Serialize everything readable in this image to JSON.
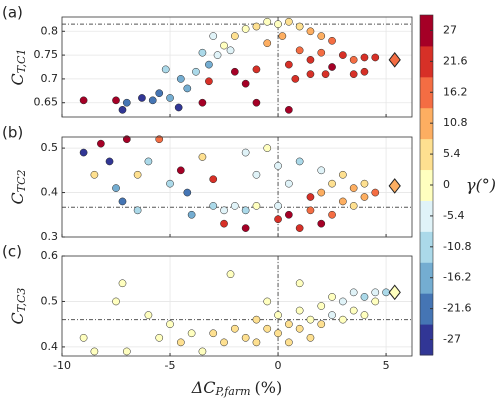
{
  "chart_data": [
    {
      "type": "scatter",
      "panel": "(a)",
      "ylabel": {
        "main": "C",
        "sub": "T,C1"
      },
      "xlim": [
        -10,
        6.2
      ],
      "xticks": [
        -10,
        -5,
        0,
        5
      ],
      "ylim": [
        0.62,
        0.83
      ],
      "yticks": [
        0.65,
        0.7,
        0.75,
        0.8
      ],
      "grid": true,
      "hline": 0.815,
      "vline": 0,
      "highlight": {
        "x": 5.4,
        "y": 0.74,
        "gamma": 16.2
      },
      "x": [
        -9,
        -7.5,
        -7.2,
        -7,
        -6.3,
        -5.8,
        -5.5,
        -5,
        -4.6,
        -4.2,
        -5.2,
        -4.5,
        -3.8,
        -3.2,
        -2.8,
        -3.5,
        -2.2,
        -3,
        -2.5,
        -2,
        -1.5,
        -1,
        -0.5,
        0,
        0.5,
        1,
        1.5,
        2,
        2.5,
        0.2,
        -0.5,
        1,
        2,
        3,
        3.5,
        4,
        4.5,
        1.5,
        0.5,
        2.5,
        3.5,
        4,
        -1,
        -2,
        0.8,
        1.5,
        -1.5,
        -3.5,
        -1,
        0.5,
        -3.2,
        2.2
      ],
      "y": [
        0.655,
        0.655,
        0.635,
        0.65,
        0.66,
        0.655,
        0.67,
        0.66,
        0.64,
        0.68,
        0.72,
        0.7,
        0.715,
        0.73,
        0.75,
        0.755,
        0.76,
        0.79,
        0.77,
        0.79,
        0.805,
        0.81,
        0.82,
        0.815,
        0.82,
        0.81,
        0.8,
        0.79,
        0.78,
        0.79,
        0.775,
        0.76,
        0.755,
        0.75,
        0.74,
        0.745,
        0.745,
        0.74,
        0.73,
        0.725,
        0.71,
        0.715,
        0.72,
        0.715,
        0.7,
        0.71,
        0.69,
        0.65,
        0.65,
        0.635,
        0.695,
        0.71
      ],
      "gamma": [
        27,
        27,
        -27,
        -21.6,
        -27,
        -21.6,
        -21.6,
        -16.2,
        -27,
        -16.2,
        -10.8,
        -16.2,
        -10.8,
        -16.2,
        -5.4,
        -10.8,
        -5.4,
        -5.4,
        0,
        5.4,
        0,
        5.4,
        0,
        0,
        5.4,
        5.4,
        10.8,
        10.8,
        16.2,
        10.8,
        10.8,
        16.2,
        16.2,
        21.6,
        16.2,
        21.6,
        21.6,
        21.6,
        21.6,
        27,
        21.6,
        21.6,
        21.6,
        27,
        21.6,
        21.6,
        27,
        27,
        27,
        27,
        21.6,
        21.6
      ]
    },
    {
      "type": "scatter",
      "panel": "(b)",
      "ylabel": {
        "main": "C",
        "sub": "TC2"
      },
      "xlim": [
        -10,
        6.2
      ],
      "xticks": [
        -10,
        -5,
        0,
        5
      ],
      "ylim": [
        0.3,
        0.525
      ],
      "yticks": [
        0.3,
        0.4,
        0.5
      ],
      "grid": true,
      "hline": 0.367,
      "vline": 0,
      "highlight": {
        "x": 5.4,
        "y": 0.415,
        "gamma": 10.8
      },
      "x": [
        -9,
        -8.5,
        -8.2,
        -7.8,
        -7.5,
        -7.2,
        -7,
        -6.5,
        -6.5,
        -6,
        -5.5,
        -5,
        -4.5,
        -4.2,
        -4,
        -3.5,
        -3,
        -3,
        -2.5,
        -2,
        -1.5,
        -1.5,
        -1,
        -1,
        -0.5,
        0,
        0,
        0,
        0.5,
        0.5,
        1,
        1,
        1.5,
        1.5,
        2,
        2,
        2,
        2.5,
        2.5,
        3,
        3,
        3.5,
        3.5,
        4,
        4,
        4.5,
        -2.5,
        -1.5
      ],
      "y": [
        0.49,
        0.44,
        0.51,
        0.47,
        0.41,
        0.38,
        0.52,
        0.44,
        0.36,
        0.47,
        0.52,
        0.42,
        0.45,
        0.4,
        0.35,
        0.48,
        0.43,
        0.37,
        0.36,
        0.37,
        0.49,
        0.36,
        0.44,
        0.37,
        0.5,
        0.46,
        0.37,
        0.34,
        0.42,
        0.35,
        0.47,
        0.32,
        0.39,
        0.36,
        0.45,
        0.4,
        0.33,
        0.42,
        0.35,
        0.44,
        0.38,
        0.41,
        0.37,
        0.42,
        0.39,
        0.4,
        0.33,
        0.32
      ],
      "gamma": [
        -27,
        5.4,
        27,
        -27,
        -16.2,
        -21.6,
        27,
        5.4,
        -10.8,
        -10.8,
        16.2,
        -10.8,
        27,
        -21.6,
        -16.2,
        5.4,
        21.6,
        -10.8,
        -5.4,
        -5.4,
        -5.4,
        -10.8,
        -5.4,
        0,
        0,
        -5.4,
        -5.4,
        21.6,
        -5.4,
        27,
        -10.8,
        21.6,
        21.6,
        16.2,
        -5.4,
        10.8,
        27,
        5.4,
        16.2,
        5.4,
        10.8,
        10.8,
        5.4,
        5.4,
        10.8,
        16.2,
        21.6,
        27
      ]
    },
    {
      "type": "scatter",
      "panel": "(c)",
      "ylabel": {
        "main": "C",
        "sub": "T,C3"
      },
      "xlabel": {
        "main": "ΔC",
        "sub": "P,farm",
        "unit": "(%)"
      },
      "xlim": [
        -10,
        6.2
      ],
      "xticks": [
        -10,
        -5,
        0,
        5
      ],
      "ylim": [
        0.38,
        0.6
      ],
      "yticks": [
        0.4,
        0.5,
        0.6
      ],
      "grid": true,
      "hline": 0.46,
      "vline": 0,
      "highlight": {
        "x": 5.4,
        "y": 0.52,
        "gamma": 0
      },
      "x": [
        -9,
        -8.5,
        -7.5,
        -7.2,
        -7,
        -6,
        -5.5,
        -5,
        -4.5,
        -4,
        -3.5,
        -3,
        -2.5,
        -2.2,
        -2,
        -1.5,
        -1,
        -1,
        -0.5,
        0,
        0,
        0.5,
        0.5,
        1,
        1,
        1.5,
        1.5,
        2,
        2,
        2.5,
        2.5,
        3,
        3,
        3.5,
        3.5,
        4,
        4,
        4.5,
        4.5,
        5,
        1,
        -0.5
      ],
      "y": [
        0.42,
        0.39,
        0.5,
        0.54,
        0.39,
        0.47,
        0.42,
        0.45,
        0.41,
        0.43,
        0.39,
        0.43,
        0.41,
        0.56,
        0.44,
        0.42,
        0.46,
        0.41,
        0.44,
        0.43,
        0.47,
        0.45,
        0.41,
        0.48,
        0.44,
        0.46,
        0.42,
        0.49,
        0.45,
        0.47,
        0.51,
        0.5,
        0.46,
        0.52,
        0.48,
        0.51,
        0.47,
        0.52,
        0.5,
        0.52,
        0.54,
        0.5
      ],
      "gamma": [
        0,
        0,
        0,
        0,
        0,
        0,
        0,
        0,
        5.4,
        0,
        0,
        5.4,
        5.4,
        0,
        5.4,
        5.4,
        5.4,
        5.4,
        5.4,
        5.4,
        0,
        5.4,
        5.4,
        0,
        5.4,
        0,
        5.4,
        0,
        5.4,
        -5.4,
        0,
        -5.4,
        0,
        -5.4,
        0,
        -10.8,
        0,
        -5.4,
        0,
        -10.8,
        0,
        0
      ]
    },
    {
      "type": "colorbar",
      "label": "γ(°)",
      "clim": [
        -29.7,
        29.7
      ],
      "cticks": [
        -27,
        -21.6,
        -16.2,
        -10.8,
        -5.4,
        0,
        5.4,
        10.8,
        16.2,
        21.6,
        27
      ],
      "colors": [
        "#313695",
        "#4575b4",
        "#74add1",
        "#abd9e9",
        "#e0f3f8",
        "#ffffbf",
        "#fee090",
        "#fdae61",
        "#f46d43",
        "#d73027",
        "#a50026"
      ]
    }
  ]
}
